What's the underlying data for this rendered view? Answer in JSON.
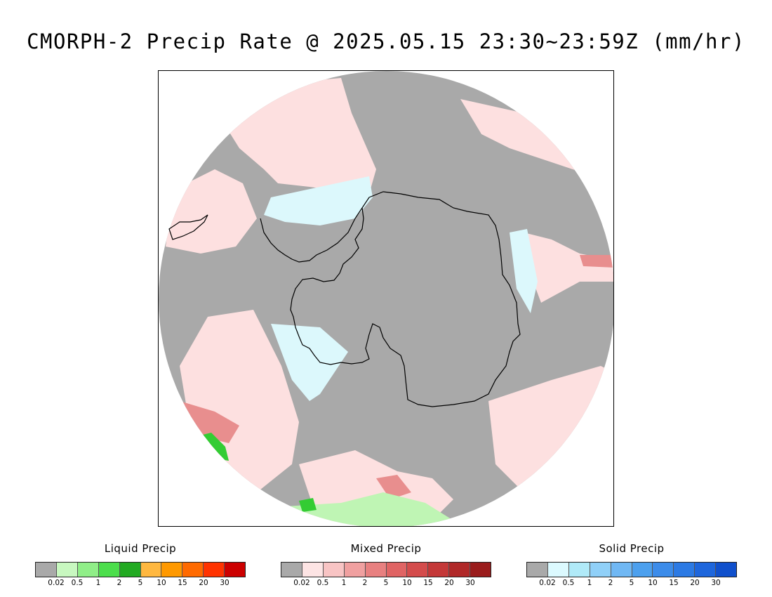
{
  "title": "CMORPH-2 Precip Rate @ 2025.05.15 23:30~23:59Z (mm/hr)",
  "map": {
    "projection": "south-polar-stereographic",
    "region": "Antarctica",
    "colors": {
      "background_no_precip": "#a9a9a9",
      "mixed_light": "#fde0e0",
      "mixed_moderate": "#f2a0a0",
      "mixed_heavy": "#d8525a",
      "solid_light": "#dcf8fc",
      "liquid_light": "#bff5b4",
      "liquid_moderate": "#33cc33",
      "coastline": "#000000"
    }
  },
  "legends": [
    {
      "id": "liquid",
      "title": "Liquid Precip",
      "colors": [
        "#a9a9a9",
        "#c8f8c0",
        "#90ee88",
        "#4cde4c",
        "#22aa22",
        "#ffb840",
        "#ff9900",
        "#ff6a00",
        "#ff3300",
        "#cc0000"
      ],
      "ticks": [
        "0.02",
        "0.5",
        "1",
        "2",
        "5",
        "10",
        "15",
        "20",
        "30"
      ]
    },
    {
      "id": "mixed",
      "title": "Mixed Precip",
      "colors": [
        "#a9a9a9",
        "#fde4e4",
        "#f8c4c4",
        "#f0a0a0",
        "#e88080",
        "#e06464",
        "#d44c4c",
        "#c43838",
        "#b02828",
        "#9a1c1c"
      ],
      "ticks": [
        "0.02",
        "0.5",
        "1",
        "2",
        "5",
        "10",
        "15",
        "20",
        "30"
      ]
    },
    {
      "id": "solid",
      "title": "Solid Precip",
      "colors": [
        "#a9a9a9",
        "#dcfaff",
        "#b0eaf8",
        "#90d0f8",
        "#70b8f4",
        "#4ca0ee",
        "#3c8cea",
        "#2c7ae4",
        "#1e66dc",
        "#1050cc"
      ],
      "ticks": [
        "0.02",
        "0.5",
        "1",
        "2",
        "5",
        "10",
        "15",
        "20",
        "30"
      ]
    }
  ]
}
